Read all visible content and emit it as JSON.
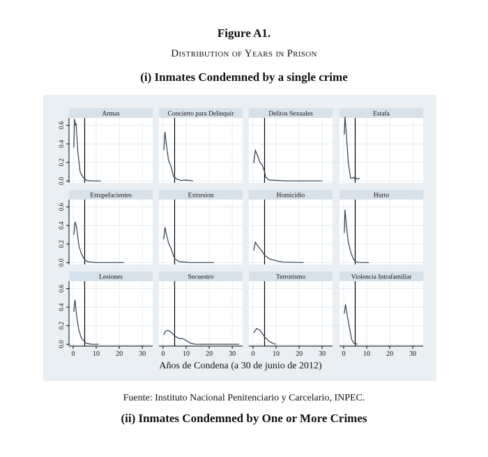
{
  "header": {
    "figure_label": "Figure A1.",
    "subtitle": "Distribution of Years in Prison",
    "part_i": "(i) Inmates Condemned by a single crime"
  },
  "footer": {
    "source": "Fuente: Instituto Nacional Penitenciario y Carcelario, INPEC.",
    "part_ii": "(ii) Inmates Condemned by One or More Crimes"
  },
  "colors": {
    "background": "#e9eff3",
    "strip": "#d6e1e9",
    "plot": "#ffffff",
    "line": "#2b3d52",
    "reference": "#000000"
  },
  "chart_data": {
    "type": "line",
    "subtype": "kernel density small multiples",
    "xlabel": "Años de Condena (a 30 de junio de 2012)",
    "ylabel": "",
    "xlim": [
      -1.8,
      34.5
    ],
    "ylim": [
      -0.02,
      0.68
    ],
    "xticks": [
      "0",
      "10",
      "20",
      "30"
    ],
    "yticks": [
      "0.0",
      "0.2",
      "0.4",
      "0.6"
    ],
    "reference_line_x": 5,
    "grid": true,
    "panels": [
      {
        "title": "Armas",
        "points": [
          [
            0.3,
            0.36
          ],
          [
            0.6,
            0.67
          ],
          [
            1,
            0.6
          ],
          [
            1.3,
            0.62
          ],
          [
            2,
            0.32
          ],
          [
            3,
            0.1
          ],
          [
            4,
            0.05
          ],
          [
            5,
            0.02
          ],
          [
            6,
            0.005
          ],
          [
            8,
            0
          ],
          [
            12,
            0
          ]
        ]
      },
      {
        "title": "Concierto para Delinquir",
        "points": [
          [
            0.3,
            0.33
          ],
          [
            0.8,
            0.53
          ],
          [
            1.5,
            0.38
          ],
          [
            2.3,
            0.23
          ],
          [
            3.5,
            0.15
          ],
          [
            4.5,
            0.05
          ],
          [
            6,
            0.02
          ],
          [
            8,
            0.005
          ],
          [
            10,
            0.01
          ],
          [
            13,
            0
          ]
        ]
      },
      {
        "title": "Delitos Sexuales",
        "points": [
          [
            0.3,
            0.19
          ],
          [
            1,
            0.33
          ],
          [
            2,
            0.27
          ],
          [
            3,
            0.2
          ],
          [
            4,
            0.17
          ],
          [
            5,
            0.1
          ],
          [
            5.5,
            0.04
          ],
          [
            7,
            0.01
          ],
          [
            15,
            0
          ],
          [
            30,
            0
          ]
        ]
      },
      {
        "title": "Estafa",
        "points": [
          [
            0.3,
            0.5
          ],
          [
            0.6,
            0.69
          ],
          [
            1.2,
            0.5
          ],
          [
            2,
            0.2
          ],
          [
            3,
            0.03
          ],
          [
            4,
            0.03
          ],
          [
            4.5,
            0.04
          ],
          [
            5,
            0.02
          ],
          [
            5.5,
            0.03
          ],
          [
            6,
            0.02
          ],
          [
            7,
            0.03
          ]
        ]
      },
      {
        "title": "Estupefacientes",
        "points": [
          [
            0.3,
            0.3
          ],
          [
            0.8,
            0.44
          ],
          [
            1.5,
            0.38
          ],
          [
            2.5,
            0.18
          ],
          [
            3.5,
            0.1
          ],
          [
            5,
            0.03
          ],
          [
            6,
            0.01
          ],
          [
            10,
            0
          ],
          [
            22,
            0
          ]
        ]
      },
      {
        "title": "Extorsion",
        "points": [
          [
            0.3,
            0.25
          ],
          [
            0.8,
            0.38
          ],
          [
            1.5,
            0.3
          ],
          [
            2.5,
            0.2
          ],
          [
            3.5,
            0.15
          ],
          [
            5,
            0.04
          ],
          [
            7,
            0.01
          ],
          [
            12,
            0
          ],
          [
            22,
            0
          ]
        ]
      },
      {
        "title": "Homicidio",
        "points": [
          [
            0.3,
            0.13
          ],
          [
            1,
            0.22
          ],
          [
            2,
            0.18
          ],
          [
            4,
            0.12
          ],
          [
            5,
            0.08
          ],
          [
            7,
            0.04
          ],
          [
            10,
            0.02
          ],
          [
            13,
            0.005
          ],
          [
            22,
            0
          ]
        ]
      },
      {
        "title": "Hurto",
        "points": [
          [
            0.3,
            0.32
          ],
          [
            0.6,
            0.57
          ],
          [
            1.2,
            0.4
          ],
          [
            2,
            0.22
          ],
          [
            3,
            0.12
          ],
          [
            4,
            0.05
          ],
          [
            5,
            0.01
          ],
          [
            7,
            0
          ],
          [
            11,
            0
          ]
        ]
      },
      {
        "title": "Lesiones",
        "points": [
          [
            0.3,
            0.35
          ],
          [
            0.8,
            0.48
          ],
          [
            1.5,
            0.3
          ],
          [
            2.5,
            0.15
          ],
          [
            3.5,
            0.07
          ],
          [
            4.5,
            0.04
          ],
          [
            5.5,
            0.01
          ],
          [
            8,
            0
          ],
          [
            11,
            0
          ]
        ]
      },
      {
        "title": "Secuestro",
        "points": [
          [
            0.3,
            0.1
          ],
          [
            1,
            0.14
          ],
          [
            2,
            0.15
          ],
          [
            3.5,
            0.13
          ],
          [
            5,
            0.09
          ],
          [
            7,
            0.06
          ],
          [
            8.5,
            0.06
          ],
          [
            10,
            0.04
          ],
          [
            12,
            0.01
          ],
          [
            14,
            0
          ],
          [
            33,
            0
          ]
        ]
      },
      {
        "title": "Terrorismo",
        "points": [
          [
            0.3,
            0.12
          ],
          [
            1.5,
            0.17
          ],
          [
            3,
            0.15
          ],
          [
            5,
            0.08
          ],
          [
            7,
            0.03
          ],
          [
            9,
            0.005
          ],
          [
            10,
            0
          ]
        ]
      },
      {
        "title": "Violencia Intrafamiliar",
        "points": [
          [
            0.3,
            0.33
          ],
          [
            0.8,
            0.43
          ],
          [
            1.5,
            0.32
          ],
          [
            2.5,
            0.18
          ],
          [
            3.5,
            0.05
          ],
          [
            4.5,
            0.01
          ],
          [
            6,
            0
          ]
        ]
      }
    ]
  }
}
